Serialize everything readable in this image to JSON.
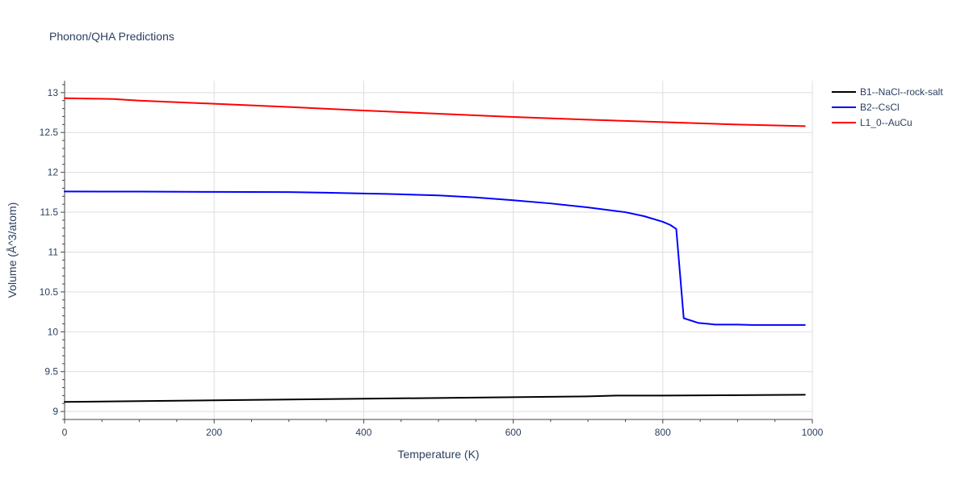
{
  "chart_data": {
    "type": "line",
    "title": "Phonon/QHA Predictions",
    "xlabel": "Temperature (K)",
    "ylabel": "Volume (Å^3/atom)",
    "xlim": [
      0,
      1000
    ],
    "ylim": [
      8.9,
      13.15
    ],
    "xticks": [
      0,
      200,
      400,
      600,
      800,
      1000
    ],
    "xtick_labels": [
      "0",
      "200",
      "400",
      "600",
      "800",
      "1000"
    ],
    "yticks": [
      9,
      9.5,
      10,
      10.5,
      11,
      11.5,
      12,
      12.5,
      13
    ],
    "ytick_labels": [
      "9",
      "9.5",
      "10",
      "10.5",
      "11",
      "11.5",
      "12",
      "12.5",
      "13"
    ],
    "grid": true,
    "legend_position": "right",
    "series": [
      {
        "name": "B1--NaCl--rock-salt",
        "color": "#000000",
        "x": [
          0,
          100,
          200,
          300,
          400,
          500,
          600,
          700,
          740,
          800,
          900,
          990
        ],
        "y": [
          9.12,
          9.13,
          9.14,
          9.15,
          9.16,
          9.17,
          9.18,
          9.19,
          9.2,
          9.2,
          9.205,
          9.21
        ]
      },
      {
        "name": "B2--CsCl",
        "color": "#0000ff",
        "x": [
          0,
          100,
          200,
          300,
          350,
          400,
          430,
          500,
          550,
          600,
          650,
          700,
          750,
          775,
          800,
          810,
          818,
          828,
          848,
          860,
          870,
          900,
          920,
          950,
          990
        ],
        "y": [
          11.76,
          11.758,
          11.755,
          11.752,
          11.745,
          11.735,
          11.73,
          11.71,
          11.685,
          11.65,
          11.61,
          11.56,
          11.5,
          11.45,
          11.38,
          11.34,
          11.29,
          10.17,
          10.11,
          10.1,
          10.09,
          10.09,
          10.085,
          10.085,
          10.085
        ]
      },
      {
        "name": "L1_0--AuCu",
        "color": "#ff0000",
        "x": [
          0,
          65,
          100,
          200,
          300,
          400,
          500,
          600,
          700,
          800,
          900,
          990
        ],
        "y": [
          12.93,
          12.92,
          12.9,
          12.86,
          12.82,
          12.775,
          12.735,
          12.695,
          12.66,
          12.63,
          12.6,
          12.58
        ]
      }
    ]
  }
}
